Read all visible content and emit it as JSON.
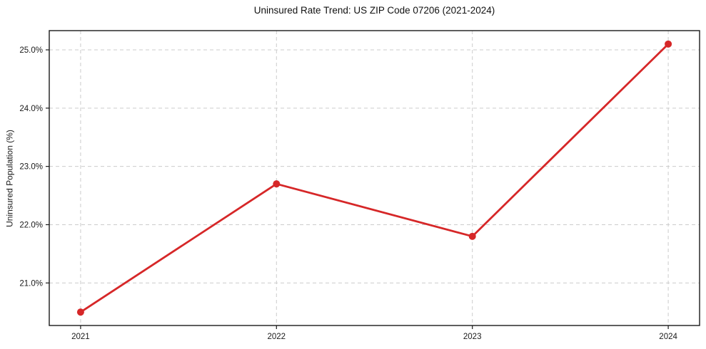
{
  "chart_data": {
    "type": "line",
    "title": "Uninsured Rate Trend: US ZIP Code 07206 (2021-2024)",
    "xlabel": "",
    "ylabel": "Uninsured Population (%)",
    "x": [
      2021,
      2022,
      2023,
      2024
    ],
    "values": [
      20.5,
      22.7,
      21.8,
      25.1
    ],
    "xticklabels": [
      "2021",
      "2022",
      "2023",
      "2024"
    ],
    "yticks": [
      21.0,
      22.0,
      23.0,
      24.0,
      25.0
    ],
    "yticklabels": [
      "21.0%",
      "22.0%",
      "23.0%",
      "24.0%",
      "25.0%"
    ],
    "xlim": [
      2020.84,
      2024.16
    ],
    "ylim": [
      20.27,
      25.33
    ],
    "grid": true,
    "grid_style": "dashed",
    "legend": false,
    "line_color": "#d62728",
    "marker": "circle",
    "marker_radius": 5,
    "grid_color": "#cccccc",
    "spine_color": "#1a1a1a",
    "background": "#ffffff"
  }
}
